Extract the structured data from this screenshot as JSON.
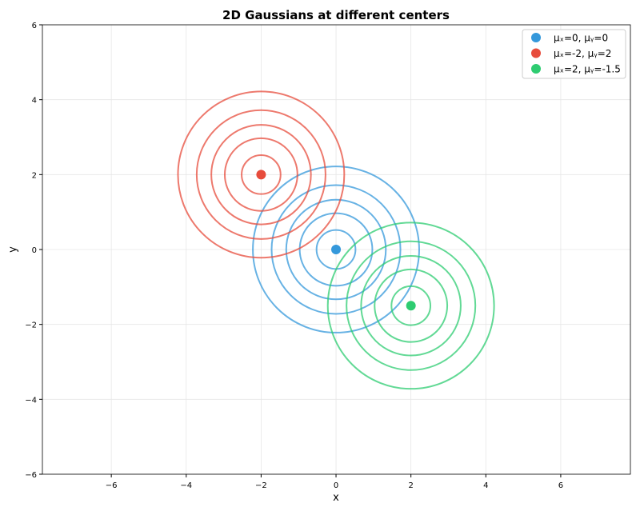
{
  "chart_data": {
    "type": "contour",
    "title": "2D Gaussians at different centers",
    "xlabel": "x",
    "ylabel": "y",
    "xlim": [
      -7.84,
      7.86
    ],
    "ylim": [
      -6,
      6
    ],
    "xticks": [
      -6,
      -4,
      -2,
      0,
      2,
      4,
      6
    ],
    "yticks": [
      -6,
      -4,
      -2,
      0,
      2,
      4,
      6
    ],
    "xtick_labels": [
      "−6",
      "−4",
      "−2",
      "0",
      "2",
      "4",
      "6"
    ],
    "ytick_labels": [
      "−6",
      "−4",
      "−2",
      "0",
      "2",
      "4",
      "6"
    ],
    "grid": true,
    "legend_position": "top-right",
    "contour_radii": [
      0.52,
      0.97,
      1.33,
      1.72,
      2.22
    ],
    "series": [
      {
        "name": "μₓ=0, μᵧ=0",
        "center": [
          0,
          0
        ],
        "color": "#3498db"
      },
      {
        "name": "μₓ=-2, μᵧ=2",
        "center": [
          -2,
          2
        ],
        "color": "#e74c3c"
      },
      {
        "name": "μₓ=2, μᵧ=-1.5",
        "center": [
          2,
          -1.5
        ],
        "color": "#2ecc71"
      }
    ]
  }
}
